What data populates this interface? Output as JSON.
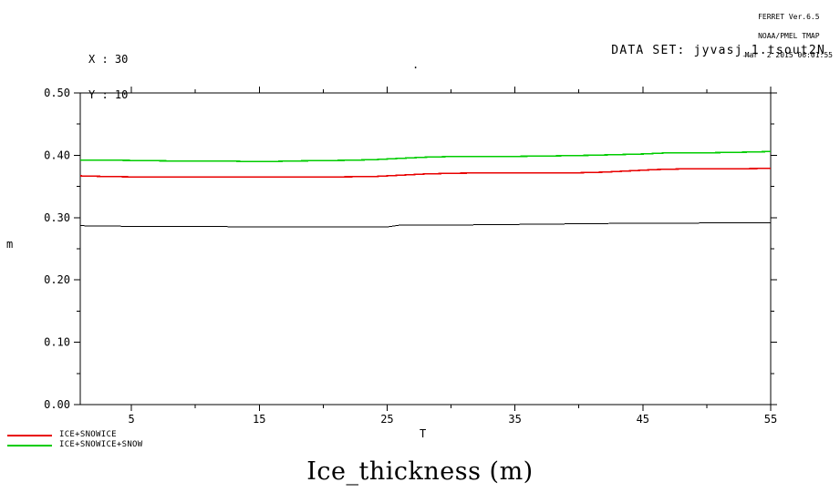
{
  "header": {
    "credit_lines": [
      "FERRET Ver.6.5",
      "NOAA/PMEL TMAP",
      "Mar  2 2015 06:01:55"
    ],
    "readout": {
      "x_line": "X : 30",
      "y_line": "Y : 10"
    },
    "dataset_label": "DATA SET: jyvasj_1.tsout2N"
  },
  "stray_mark": ".",
  "title": "Ice_thickness (m)",
  "colors": {
    "frame": "#000000",
    "red_line": "#e80000",
    "green_line": "#00cc00",
    "black_line": "#000000"
  },
  "chart_data": {
    "type": "line",
    "title": "Ice_thickness (m)",
    "xlabel": "T",
    "ylabel": "m",
    "xlim": [
      1,
      55
    ],
    "ylim": [
      0,
      0.5
    ],
    "x_major_ticks": [
      5,
      15,
      25,
      35,
      45,
      55
    ],
    "x_minor_ticks": [
      10,
      20,
      30,
      40,
      50
    ],
    "y_major_ticks": [
      0,
      0.1,
      0.2,
      0.3,
      0.4,
      0.5
    ],
    "y_minor_ticks": [
      0.05,
      0.15,
      0.25,
      0.35,
      0.45
    ],
    "x_tick_labels": [
      "5",
      "15",
      "25",
      "35",
      "45",
      "55"
    ],
    "y_tick_labels": [
      "0.00",
      "0.10",
      "0.20",
      "0.30",
      "0.40",
      "0.50"
    ],
    "grid": false,
    "legend_position": "bottom-left-below-axis",
    "series": [
      {
        "name": "",
        "color": "#000000",
        "in_legend": false,
        "x": [
          1,
          5,
          10,
          15,
          20,
          25,
          26,
          30,
          35,
          40,
          44,
          48,
          52,
          55
        ],
        "y": [
          0.287,
          0.286,
          0.286,
          0.285,
          0.285,
          0.285,
          0.288,
          0.288,
          0.289,
          0.29,
          0.291,
          0.291,
          0.292,
          0.292
        ]
      },
      {
        "name": "ICE+SNOWICE",
        "color": "#e80000",
        "in_legend": true,
        "x": [
          1,
          3,
          6,
          10,
          15,
          20,
          24,
          26,
          28,
          30,
          33,
          36,
          40,
          42,
          44,
          46,
          48,
          51,
          55
        ],
        "y": [
          0.367,
          0.366,
          0.365,
          0.365,
          0.365,
          0.365,
          0.366,
          0.368,
          0.37,
          0.371,
          0.372,
          0.372,
          0.372,
          0.373,
          0.375,
          0.377,
          0.378,
          0.378,
          0.379
        ]
      },
      {
        "name": "ICE+SNOWICE+SNOW",
        "color": "#00cc00",
        "in_legend": true,
        "x": [
          1,
          4,
          8,
          12,
          14,
          16,
          18,
          22,
          24,
          26,
          28,
          30,
          34,
          38,
          41,
          43,
          45,
          47,
          50,
          53,
          55
        ],
        "y": [
          0.392,
          0.392,
          0.391,
          0.391,
          0.39,
          0.39,
          0.391,
          0.392,
          0.393,
          0.395,
          0.397,
          0.398,
          0.398,
          0.399,
          0.4,
          0.401,
          0.402,
          0.404,
          0.404,
          0.405,
          0.406
        ]
      }
    ]
  }
}
